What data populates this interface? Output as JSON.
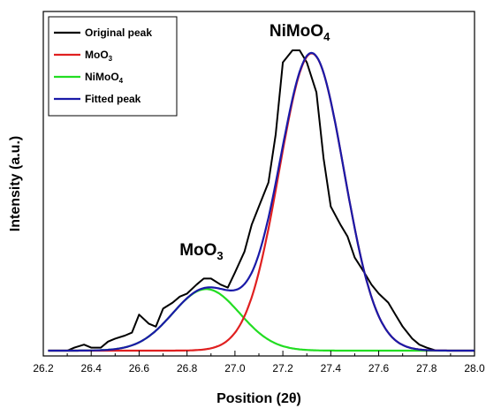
{
  "chart_data": {
    "type": "line",
    "title": "",
    "xlabel": "Position (2θ)",
    "ylabel": "Intensity (a.u.)",
    "xlim": [
      26.2,
      28.0
    ],
    "ylim": [
      0,
      1.0
    ],
    "x_ticks": [
      "26.2",
      "26.4",
      "26.6",
      "26.8",
      "27.0",
      "27.2",
      "27.4",
      "27.6",
      "27.8",
      "28.0"
    ],
    "legend_position": "top-left",
    "grid": false,
    "annotations": [
      {
        "text": "MoO",
        "sub": "3",
        "x": 26.86,
        "y": 0.27
      },
      {
        "text": "NiMoO",
        "sub": "4",
        "x": 27.27,
        "y": 1.0
      }
    ],
    "series": [
      {
        "name": "Original peak",
        "sub": "",
        "color": "#000000",
        "kind": "step",
        "x": [
          26.3,
          26.33,
          26.37,
          26.4,
          26.44,
          26.47,
          26.5,
          26.54,
          26.57,
          26.6,
          26.64,
          26.67,
          26.7,
          26.74,
          26.77,
          26.8,
          26.84,
          26.87,
          26.9,
          26.94,
          26.97,
          27.0,
          27.04,
          27.07,
          27.1,
          27.14,
          27.17,
          27.2,
          27.24,
          27.27,
          27.3,
          27.34,
          27.37,
          27.4,
          27.44,
          27.47,
          27.5,
          27.54,
          27.57,
          27.6,
          27.64,
          27.67,
          27.7,
          27.74,
          27.77,
          27.8,
          27.84,
          27.88
        ],
        "y": [
          0.0,
          0.01,
          0.02,
          0.01,
          0.01,
          0.03,
          0.04,
          0.05,
          0.06,
          0.12,
          0.09,
          0.08,
          0.14,
          0.16,
          0.18,
          0.19,
          0.22,
          0.24,
          0.24,
          0.22,
          0.21,
          0.26,
          0.33,
          0.42,
          0.48,
          0.56,
          0.72,
          0.96,
          1.0,
          1.0,
          0.96,
          0.86,
          0.64,
          0.48,
          0.42,
          0.38,
          0.31,
          0.26,
          0.22,
          0.19,
          0.16,
          0.12,
          0.08,
          0.04,
          0.02,
          0.01,
          0.0,
          0.0
        ]
      },
      {
        "name": "MoO",
        "sub": "3",
        "color": "#e02020",
        "kind": "gauss",
        "amp": 0.99,
        "center": 27.32,
        "sigma": 0.135,
        "x_range": [
          26.22,
          28.0
        ]
      },
      {
        "name": "NiMoO",
        "sub": "4",
        "color": "#22dd22",
        "kind": "gauss",
        "amp": 0.205,
        "center": 26.88,
        "sigma": 0.14,
        "x_range": [
          26.22,
          28.0
        ]
      },
      {
        "name": "Fitted peak",
        "sub": "",
        "color": "#1a1aa8",
        "kind": "sum",
        "x_range": [
          26.22,
          28.0
        ]
      }
    ]
  }
}
